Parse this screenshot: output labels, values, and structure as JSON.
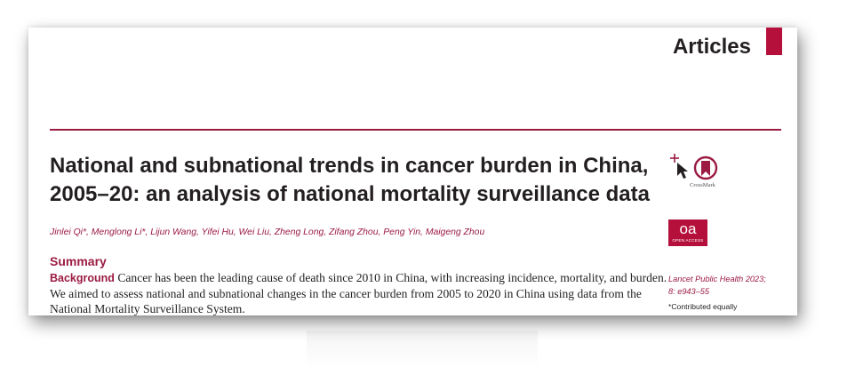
{
  "header": {
    "section_label": "Articles"
  },
  "article": {
    "title_line1": "National and subnational trends in cancer burden in China,",
    "title_line2": "2005–20: an analysis of national mortality surveillance data",
    "authors": "Jinlei Qi*, Menglong Li*, Lijun Wang, Yifei Hu, Wei Liu, Zheng Long, Zifang Zhou, Peng Yin, Maigeng Zhou",
    "summary_heading": "Summary",
    "background_label": "Background",
    "background_text": " Cancer has been the leading cause of death since 2010 in China, with increasing incidence, mortality, and burden. We aimed to assess national and subnational changes in the cancer burden from 2005 to 2020 in China using data from the National Mortality Surveillance System."
  },
  "sidebar": {
    "crossmark_label": "CrossMark",
    "oa_text": "oa",
    "oa_subtext": "OPEN ACCESS",
    "citation_line1": "Lancet Public Health 2023;",
    "citation_line2": "8: e943–55",
    "contributed_note": "*Contributed equally"
  },
  "colors": {
    "brand": "#9b1b42",
    "tab": "#b5103c",
    "text": "#231f20"
  },
  "icons": [
    "crossmark-icon",
    "oa-badge"
  ]
}
